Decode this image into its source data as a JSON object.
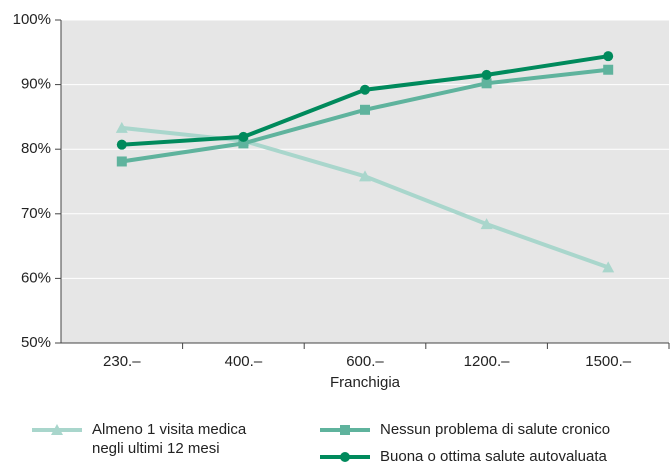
{
  "chart_data": {
    "type": "line",
    "x_label": "Franchigia",
    "categories": [
      "230.–",
      "400.–",
      "600.–",
      "1200.–",
      "1500.–"
    ],
    "ylim": [
      50,
      100
    ],
    "yticks": [
      {
        "value": 50,
        "label": "50%"
      },
      {
        "value": 60,
        "label": "60%"
      },
      {
        "value": 70,
        "label": "70%"
      },
      {
        "value": 80,
        "label": "80%"
      },
      {
        "value": 90,
        "label": "90%"
      },
      {
        "value": 100,
        "label": "100%"
      }
    ],
    "grid": true,
    "series": [
      {
        "name": "Almeno 1 visita medica negli ultimi 12 mesi",
        "color": "#a9d6cc",
        "marker": "triangle",
        "values": [
          83.3,
          81.3,
          75.8,
          68.4,
          61.7
        ]
      },
      {
        "name": "Nessun problema di salute cronico",
        "color": "#5fb39d",
        "marker": "square",
        "values": [
          78.1,
          80.9,
          86.1,
          90.2,
          92.3
        ]
      },
      {
        "name": "Buona o ottima salute autovaluata",
        "color": "#008a5c",
        "marker": "circle",
        "values": [
          80.7,
          81.9,
          89.2,
          91.5,
          94.4
        ]
      }
    ]
  }
}
